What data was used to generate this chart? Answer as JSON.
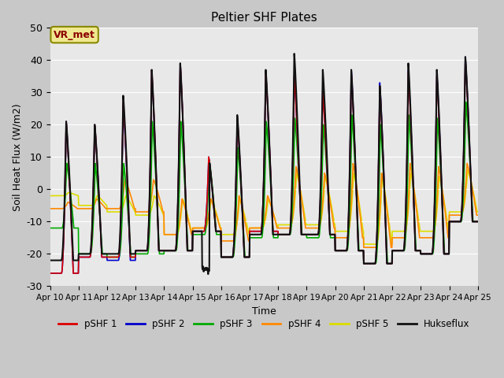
{
  "title": "Peltier SHF Plates",
  "xlabel": "Time",
  "ylabel": "Soil Heat Flux (W/m2)",
  "ylim": [
    -30,
    50
  ],
  "xlim": [
    0,
    360
  ],
  "fig_bg": "#c8c8c8",
  "plot_bg": "#e8e8e8",
  "annotation_text": "VR_met",
  "annotation_color": "#8B0000",
  "annotation_bg": "#f0e890",
  "annotation_border": "#888800",
  "series_colors": {
    "pSHF1": "#dd0000",
    "pSHF2": "#0000cc",
    "pSHF3": "#00aa00",
    "pSHF4": "#ff8800",
    "pSHF5": "#dddd00",
    "Hukseflux": "#111111"
  },
  "legend_labels": [
    "pSHF 1",
    "pSHF 2",
    "pSHF 3",
    "pSHF 4",
    "pSHF 5",
    "Hukseflux"
  ],
  "legend_colors": [
    "#dd0000",
    "#0000cc",
    "#00aa00",
    "#ff8800",
    "#dddd00",
    "#111111"
  ],
  "xtick_labels": [
    "Apr 10",
    "Apr 11",
    "Apr 12",
    "Apr 13",
    "Apr 14",
    "Apr 15",
    "Apr 16",
    "Apr 17",
    "Apr 18",
    "Apr 19",
    "Apr 20",
    "Apr 21",
    "Apr 22",
    "Apr 23",
    "Apr 24",
    "Apr 25"
  ],
  "xtick_positions": [
    0,
    24,
    48,
    72,
    96,
    120,
    144,
    168,
    192,
    216,
    240,
    264,
    288,
    312,
    336,
    360
  ],
  "ytick_positions": [
    -30,
    -20,
    -10,
    0,
    10,
    20,
    30,
    40,
    50
  ],
  "day_peaks_red": [
    21,
    20,
    27,
    37,
    39,
    10,
    22,
    36,
    35,
    30,
    36,
    32,
    36,
    35,
    40
  ],
  "day_peaks_blue": [
    21,
    20,
    26,
    36,
    39,
    10,
    22,
    36,
    35,
    31,
    37,
    33,
    37,
    36,
    41
  ],
  "day_peaks_green": [
    8,
    8,
    8,
    21,
    21,
    9,
    13,
    21,
    22,
    20,
    23,
    20,
    23,
    22,
    27
  ],
  "day_peaks_orange": [
    -4,
    -3,
    3,
    3,
    -3,
    -3,
    -2,
    -2,
    7,
    5,
    8,
    5,
    8,
    7,
    8
  ],
  "day_peaks_yellow": [
    -1,
    -2,
    -2,
    -2,
    -3,
    -3,
    -3,
    -3,
    5,
    4,
    5,
    4,
    5,
    4,
    6
  ],
  "day_peaks_black": [
    21,
    20,
    29,
    37,
    39,
    10,
    23,
    37,
    42,
    37,
    37,
    32,
    39,
    37,
    41
  ],
  "day_troughs_red": [
    -26,
    -21,
    -21,
    -19,
    -19,
    -13,
    -21,
    -13,
    -14,
    -14,
    -19,
    -23,
    -19,
    -20,
    -10
  ],
  "day_troughs_blue": [
    -26,
    -21,
    -22,
    -19,
    -19,
    -13,
    -21,
    -13,
    -14,
    -14,
    -19,
    -23,
    -19,
    -20,
    -10
  ],
  "day_troughs_green": [
    -12,
    -20,
    -21,
    -20,
    -19,
    -14,
    -21,
    -15,
    -14,
    -15,
    -19,
    -23,
    -19,
    -20,
    -10
  ],
  "day_troughs_orange": [
    -6,
    -6,
    -6,
    -7,
    -14,
    -12,
    -16,
    -12,
    -12,
    -12,
    -15,
    -18,
    -15,
    -15,
    -8
  ],
  "day_troughs_yellow": [
    -2,
    -5,
    -7,
    -8,
    -14,
    -12,
    -14,
    -12,
    -11,
    -11,
    -13,
    -17,
    -13,
    -13,
    -7
  ],
  "day_troughs_black": [
    -22,
    -20,
    -20,
    -19,
    -19,
    -13,
    -21,
    -14,
    -14,
    -14,
    -19,
    -23,
    -19,
    -20,
    -10
  ]
}
